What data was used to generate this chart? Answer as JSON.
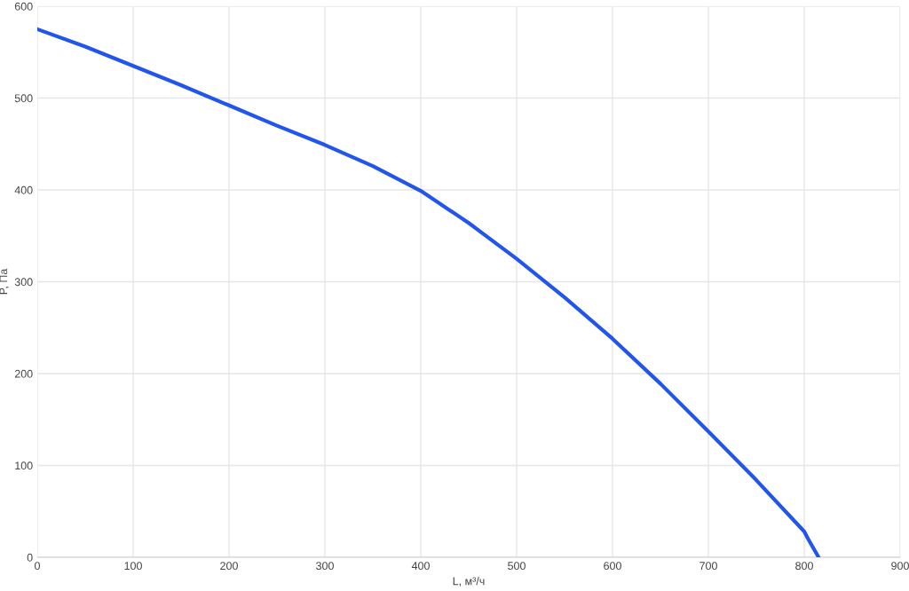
{
  "chart_data": {
    "type": "line",
    "xlabel": "L, м³/ч",
    "ylabel": "P, Па",
    "series": [
      {
        "color": "#2255ee",
        "x": [
          0,
          50,
          100,
          150,
          200,
          250,
          300,
          350,
          400,
          450,
          500,
          550,
          600,
          650,
          700,
          750,
          800,
          804,
          815
        ],
        "values": [
          575,
          556,
          535,
          514,
          492,
          470,
          449,
          426,
          399,
          364,
          325,
          283,
          238,
          189,
          137,
          84,
          28,
          20,
          0
        ]
      }
    ],
    "xlim": [
      0,
      900
    ],
    "ylim": [
      0,
      600
    ],
    "xticks": [
      0,
      100,
      200,
      300,
      400,
      500,
      600,
      700,
      800,
      900
    ],
    "yticks": [
      0,
      100,
      200,
      300,
      400,
      500,
      600
    ],
    "grid": true,
    "marker": "none",
    "line_style": "solid"
  }
}
